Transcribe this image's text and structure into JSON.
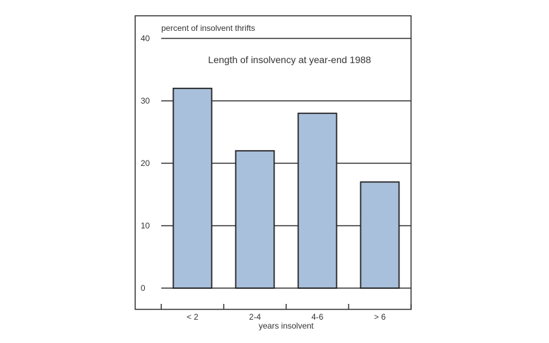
{
  "chart_data": {
    "type": "bar",
    "title": "Length of insolvency at year-end 1988",
    "ylabel": "percent of insolvent thrifts",
    "xlabel": "years insolvent",
    "categories": [
      "< 2",
      "2-4",
      "4-6",
      "> 6"
    ],
    "values": [
      32,
      22,
      28,
      17
    ],
    "ylim": [
      0,
      40
    ],
    "yticks": [
      "0",
      "10",
      "20",
      "30",
      "40"
    ],
    "grid": true,
    "bar_color": "#a9c0dc",
    "outline_color": "#222222"
  }
}
